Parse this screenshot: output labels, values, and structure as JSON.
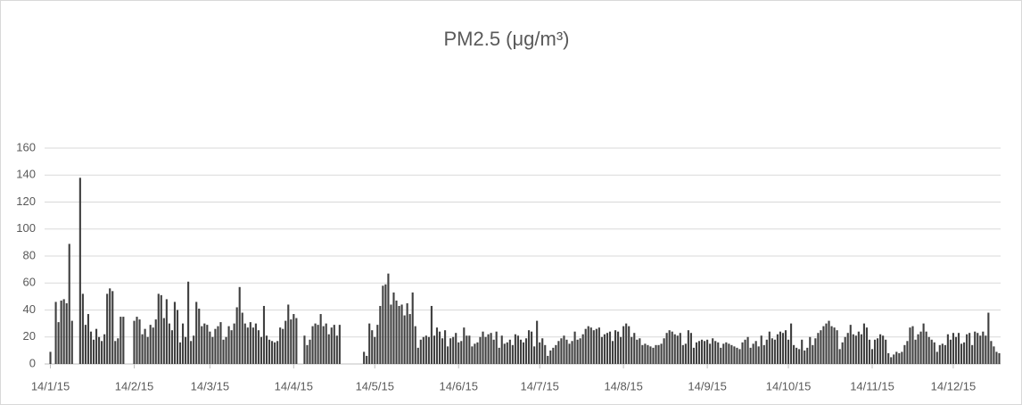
{
  "chart_data": {
    "type": "bar",
    "title": "PM2.5 (μg/m³)",
    "color": "#404040",
    "grid": true,
    "ylim": [
      0,
      160
    ],
    "yticks": [
      0,
      20,
      40,
      60,
      80,
      100,
      120,
      140,
      160
    ],
    "categories": [
      "14/1/15",
      null,
      null,
      null,
      null,
      null,
      null,
      null,
      null,
      null,
      null,
      null,
      null,
      null,
      null,
      null,
      null,
      null,
      null,
      null,
      null,
      null,
      null,
      null,
      null,
      null,
      null,
      null,
      null,
      null,
      null,
      "14/2/15",
      null,
      null,
      null,
      null,
      null,
      null,
      null,
      null,
      null,
      null,
      null,
      null,
      null,
      null,
      null,
      null,
      null,
      null,
      null,
      null,
      null,
      null,
      null,
      null,
      null,
      null,
      null,
      "14/3/15",
      null,
      null,
      null,
      null,
      null,
      null,
      null,
      null,
      null,
      null,
      null,
      null,
      null,
      null,
      null,
      null,
      null,
      null,
      null,
      null,
      null,
      null,
      null,
      null,
      null,
      null,
      null,
      null,
      null,
      null,
      "14/4/15",
      null,
      null,
      null,
      null,
      null,
      null,
      null,
      null,
      null,
      null,
      null,
      null,
      null,
      null,
      null,
      null,
      null,
      null,
      null,
      null,
      null,
      null,
      null,
      null,
      null,
      null,
      null,
      null,
      null,
      "14/5/15",
      null,
      null,
      null,
      null,
      null,
      null,
      null,
      null,
      null,
      null,
      null,
      null,
      null,
      null,
      null,
      null,
      null,
      null,
      null,
      null,
      null,
      null,
      null,
      null,
      null,
      null,
      null,
      null,
      null,
      null,
      "14/6/15",
      null,
      null,
      null,
      null,
      null,
      null,
      null,
      null,
      null,
      null,
      null,
      null,
      null,
      null,
      null,
      null,
      null,
      null,
      null,
      null,
      null,
      null,
      null,
      null,
      null,
      null,
      null,
      null,
      null,
      "14/7/15",
      null,
      null,
      null,
      null,
      null,
      null,
      null,
      null,
      null,
      null,
      null,
      null,
      null,
      null,
      null,
      null,
      null,
      null,
      null,
      null,
      null,
      null,
      null,
      null,
      null,
      null,
      null,
      null,
      null,
      null,
      "14/8/15",
      null,
      null,
      null,
      null,
      null,
      null,
      null,
      null,
      null,
      null,
      null,
      null,
      null,
      null,
      null,
      null,
      null,
      null,
      null,
      null,
      null,
      null,
      null,
      null,
      null,
      null,
      null,
      null,
      null,
      null,
      "14/9/15",
      null,
      null,
      null,
      null,
      null,
      null,
      null,
      null,
      null,
      null,
      null,
      null,
      null,
      null,
      null,
      null,
      null,
      null,
      null,
      null,
      null,
      null,
      null,
      null,
      null,
      null,
      null,
      null,
      null,
      "14/10/15",
      null,
      null,
      null,
      null,
      null,
      null,
      null,
      null,
      null,
      null,
      null,
      null,
      null,
      null,
      null,
      null,
      null,
      null,
      null,
      null,
      null,
      null,
      null,
      null,
      null,
      null,
      null,
      null,
      null,
      null,
      "14/11/15",
      null,
      null,
      null,
      null,
      null,
      null,
      null,
      null,
      null,
      null,
      null,
      null,
      null,
      null,
      null,
      null,
      null,
      null,
      null,
      null,
      null,
      null,
      null,
      null,
      null,
      null,
      null,
      null,
      null,
      "14/12/15",
      null,
      null,
      null,
      null,
      null,
      null,
      null,
      null,
      null,
      null,
      null,
      null,
      null,
      null,
      null,
      null,
      null
    ],
    "values": [
      9,
      null,
      46,
      31,
      47,
      48,
      45,
      89,
      32,
      null,
      null,
      138,
      52,
      29,
      37,
      24,
      18,
      26,
      20,
      17,
      22,
      52,
      56,
      54,
      17,
      19,
      35,
      35,
      null,
      null,
      null,
      32,
      35,
      33,
      22,
      26,
      20,
      29,
      27,
      33,
      52,
      51,
      34,
      48,
      30,
      25,
      46,
      40,
      16,
      30,
      20,
      61,
      17,
      21,
      46,
      41,
      28,
      30,
      29,
      24,
      20,
      26,
      28,
      31,
      18,
      20,
      28,
      25,
      30,
      42,
      57,
      38,
      30,
      27,
      31,
      27,
      30,
      25,
      20,
      43,
      21,
      18,
      17,
      16,
      17,
      27,
      26,
      32,
      44,
      33,
      37,
      34,
      null,
      null,
      21,
      14,
      18,
      28,
      30,
      29,
      37,
      28,
      30,
      22,
      27,
      29,
      21,
      29,
      null,
      null,
      null,
      null,
      null,
      null,
      null,
      null,
      9,
      6,
      30,
      25,
      20,
      29,
      43,
      58,
      59,
      67,
      44,
      53,
      47,
      43,
      44,
      36,
      45,
      37,
      53,
      28,
      12,
      18,
      20,
      21,
      20,
      43,
      21,
      27,
      24,
      19,
      25,
      13,
      19,
      20,
      23,
      16,
      17,
      27,
      21,
      21,
      13,
      15,
      16,
      20,
      24,
      20,
      22,
      23,
      18,
      24,
      12,
      21,
      15,
      16,
      18,
      14,
      22,
      21,
      18,
      16,
      19,
      25,
      24,
      13,
      32,
      16,
      19,
      14,
      6,
      10,
      12,
      14,
      17,
      19,
      21,
      18,
      15,
      17,
      24,
      18,
      19,
      22,
      26,
      28,
      27,
      25,
      26,
      27,
      20,
      22,
      23,
      24,
      17,
      25,
      24,
      20,
      28,
      30,
      28,
      20,
      23,
      18,
      19,
      14,
      15,
      14,
      13,
      12,
      14,
      14,
      15,
      19,
      23,
      25,
      24,
      22,
      21,
      23,
      14,
      15,
      25,
      23,
      12,
      16,
      17,
      18,
      17,
      18,
      15,
      19,
      17,
      16,
      12,
      15,
      16,
      15,
      14,
      13,
      12,
      11,
      16,
      18,
      20,
      12,
      15,
      17,
      13,
      21,
      14,
      18,
      24,
      19,
      18,
      22,
      24,
      23,
      25,
      18,
      30,
      14,
      12,
      11,
      18,
      10,
      12,
      20,
      14,
      19,
      23,
      25,
      28,
      30,
      32,
      28,
      27,
      25,
      11,
      16,
      20,
      23,
      29,
      22,
      21,
      24,
      22,
      30,
      27,
      18,
      11,
      18,
      19,
      22,
      21,
      18,
      8,
      5,
      7,
      9,
      8,
      9,
      14,
      17,
      27,
      28,
      18,
      22,
      24,
      30,
      24,
      20,
      18,
      16,
      9,
      14,
      15,
      14,
      22,
      18,
      23,
      20,
      23,
      15,
      16,
      22,
      23,
      14,
      24,
      23,
      21,
      24,
      21,
      38,
      17,
      13,
      9,
      8
    ]
  }
}
